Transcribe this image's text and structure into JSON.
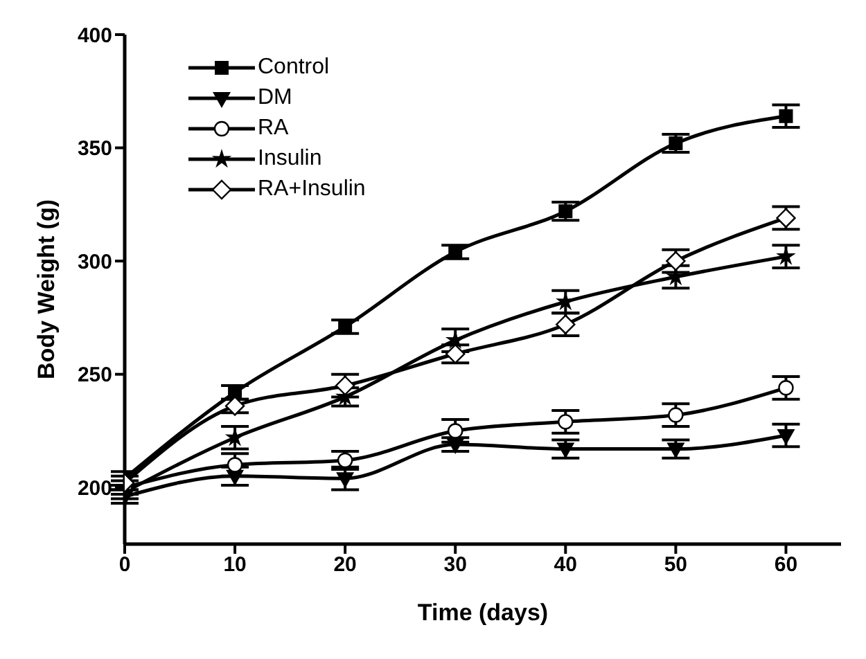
{
  "chart_data": {
    "type": "line",
    "xlabel": "Time (days)",
    "ylabel": "Body Weight (g)",
    "x": [
      0,
      10,
      20,
      30,
      40,
      50,
      60
    ],
    "xlim": [
      0,
      65
    ],
    "xticks": [
      0,
      10,
      20,
      30,
      40,
      50,
      60
    ],
    "ylim": [
      175,
      400
    ],
    "yticks": [
      200,
      250,
      300,
      350,
      400
    ],
    "grid": false,
    "legend": "top left",
    "line_style": "solid",
    "series": [
      {
        "name": "Control",
        "color": "#000000",
        "marker": "square",
        "values": [
          204,
          242,
          271,
          304,
          322,
          352,
          364
        ],
        "errors": [
          3,
          3,
          3,
          3,
          4,
          4,
          5
        ]
      },
      {
        "name": "DM",
        "color": "#000000",
        "marker": "triangle",
        "values": [
          196,
          205,
          204,
          219,
          217,
          217,
          223
        ],
        "errors": [
          3,
          4,
          5,
          3,
          4,
          4,
          5
        ]
      },
      {
        "name": "RA",
        "color": "#000000",
        "marker": "circle",
        "values": [
          200,
          210,
          212,
          225,
          229,
          232,
          244
        ],
        "errors": [
          3,
          5,
          4,
          5,
          5,
          5,
          5
        ]
      },
      {
        "name": "Insulin",
        "color": "#000000",
        "marker": "star",
        "values": [
          198,
          222,
          240,
          265,
          282,
          293,
          302
        ],
        "errors": [
          3,
          5,
          4,
          5,
          5,
          5,
          5
        ]
      },
      {
        "name": "RA+Insulin",
        "color": "#000000",
        "marker": "diamond",
        "values": [
          202,
          236,
          245,
          259,
          272,
          300,
          319
        ],
        "errors": [
          3,
          3,
          5,
          4,
          5,
          5,
          5
        ]
      }
    ]
  }
}
